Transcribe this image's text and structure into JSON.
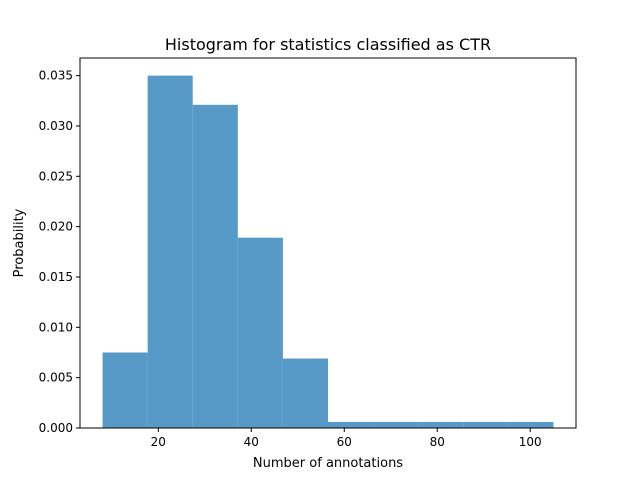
{
  "chart_data": {
    "type": "bar",
    "title": "Histogram for statistics classified as CTR",
    "xlabel": "Number of annotations",
    "ylabel": "Probability",
    "bins": [
      {
        "x0": 8,
        "x1": 17.7,
        "value": 0.0075
      },
      {
        "x0": 17.7,
        "x1": 27.4,
        "value": 0.035
      },
      {
        "x0": 27.4,
        "x1": 37.1,
        "value": 0.0321
      },
      {
        "x0": 37.1,
        "x1": 46.8,
        "value": 0.0189
      },
      {
        "x0": 46.8,
        "x1": 56.5,
        "value": 0.0069
      },
      {
        "x0": 56.5,
        "x1": 66.2,
        "value": 0.0006
      },
      {
        "x0": 66.2,
        "x1": 75.9,
        "value": 0.0006
      },
      {
        "x0": 75.9,
        "x1": 85.6,
        "value": 0.0006
      },
      {
        "x0": 85.6,
        "x1": 95.3,
        "value": 0.0006
      },
      {
        "x0": 95.3,
        "x1": 105,
        "value": 0.0006
      }
    ],
    "xlim": [
      3.15,
      109.85
    ],
    "ylim": [
      0,
      0.03675
    ],
    "xticks": [
      20,
      40,
      60,
      80,
      100
    ],
    "xtick_labels": [
      "20",
      "40",
      "60",
      "80",
      "100"
    ],
    "yticks": [
      0,
      0.005,
      0.01,
      0.015,
      0.02,
      0.025,
      0.03,
      0.035
    ],
    "ytick_labels": [
      "0.000",
      "0.005",
      "0.010",
      "0.015",
      "0.020",
      "0.025",
      "0.030",
      "0.035"
    ],
    "bar_color": "#5799c7",
    "grid": false,
    "legend": "none"
  }
}
